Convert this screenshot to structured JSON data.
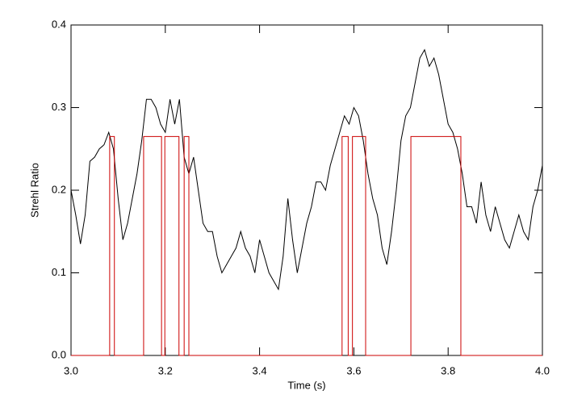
{
  "chart_data": {
    "type": "line",
    "xlabel": "Time (s)",
    "ylabel": "Strehl Ratio",
    "xlim": [
      3.0,
      4.0
    ],
    "ylim": [
      0.0,
      0.4
    ],
    "xticks": [
      {
        "value": 3.0,
        "label": "3.0"
      },
      3.2,
      3.4,
      3.6,
      3.8,
      {
        "value": 4.0,
        "label": "4.0"
      }
    ],
    "yticks": [
      {
        "value": 0.0,
        "label": "0.0"
      },
      0.1,
      0.2,
      0.3,
      0.4
    ],
    "series": [
      {
        "color": "#000000",
        "x": [
          3.0,
          3.01,
          3.02,
          3.03,
          3.04,
          3.05,
          3.06,
          3.07,
          3.08,
          3.09,
          3.1,
          3.11,
          3.12,
          3.13,
          3.14,
          3.15,
          3.16,
          3.17,
          3.18,
          3.19,
          3.2,
          3.21,
          3.22,
          3.23,
          3.24,
          3.25,
          3.26,
          3.27,
          3.28,
          3.29,
          3.3,
          3.31,
          3.32,
          3.33,
          3.34,
          3.35,
          3.36,
          3.37,
          3.38,
          3.39,
          3.4,
          3.41,
          3.42,
          3.43,
          3.44,
          3.45,
          3.46,
          3.47,
          3.48,
          3.49,
          3.5,
          3.51,
          3.52,
          3.53,
          3.54,
          3.55,
          3.56,
          3.57,
          3.58,
          3.59,
          3.6,
          3.61,
          3.62,
          3.63,
          3.64,
          3.65,
          3.66,
          3.67,
          3.68,
          3.69,
          3.7,
          3.71,
          3.72,
          3.73,
          3.74,
          3.75,
          3.76,
          3.77,
          3.78,
          3.79,
          3.8,
          3.81,
          3.82,
          3.83,
          3.84,
          3.85,
          3.86,
          3.87,
          3.88,
          3.89,
          3.9,
          3.91,
          3.92,
          3.93,
          3.94,
          3.95,
          3.96,
          3.97,
          3.98,
          3.99,
          4.0
        ],
        "values": [
          0.2,
          0.17,
          0.135,
          0.17,
          0.235,
          0.24,
          0.25,
          0.255,
          0.27,
          0.25,
          0.19,
          0.14,
          0.16,
          0.19,
          0.22,
          0.26,
          0.31,
          0.31,
          0.3,
          0.28,
          0.27,
          0.31,
          0.28,
          0.31,
          0.24,
          0.22,
          0.24,
          0.2,
          0.16,
          0.15,
          0.15,
          0.12,
          0.1,
          0.11,
          0.12,
          0.13,
          0.15,
          0.13,
          0.12,
          0.1,
          0.14,
          0.12,
          0.1,
          0.09,
          0.08,
          0.12,
          0.19,
          0.14,
          0.1,
          0.13,
          0.16,
          0.18,
          0.21,
          0.21,
          0.2,
          0.23,
          0.25,
          0.27,
          0.29,
          0.28,
          0.3,
          0.29,
          0.26,
          0.22,
          0.19,
          0.17,
          0.13,
          0.11,
          0.15,
          0.2,
          0.26,
          0.29,
          0.3,
          0.33,
          0.36,
          0.37,
          0.35,
          0.36,
          0.34,
          0.31,
          0.28,
          0.27,
          0.25,
          0.22,
          0.18,
          0.18,
          0.16,
          0.21,
          0.17,
          0.15,
          0.18,
          0.16,
          0.14,
          0.13,
          0.15,
          0.17,
          0.15,
          0.14,
          0.18,
          0.2,
          0.23
        ]
      },
      {
        "color": "#cc0000",
        "x": [
          3.0,
          3.082,
          3.082,
          3.092,
          3.092,
          3.154,
          3.154,
          3.192,
          3.192,
          3.199,
          3.199,
          3.229,
          3.229,
          3.24,
          3.24,
          3.25,
          3.25,
          3.575,
          3.575,
          3.588,
          3.588,
          3.597,
          3.597,
          3.625,
          3.625,
          3.721,
          3.721,
          3.827,
          3.827,
          4.0
        ],
        "values": [
          0,
          0,
          0.265,
          0.265,
          0,
          0,
          0.265,
          0.265,
          0,
          0,
          0.265,
          0.265,
          0,
          0,
          0.265,
          0.265,
          0,
          0,
          0.265,
          0.265,
          0,
          0,
          0.265,
          0.265,
          0,
          0,
          0.265,
          0.265,
          0,
          0
        ]
      }
    ]
  }
}
